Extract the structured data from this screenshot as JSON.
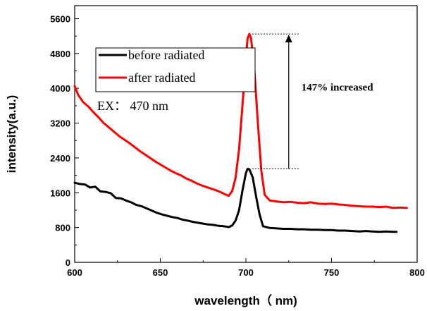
{
  "chart_data": {
    "type": "line",
    "title": "",
    "xlabel": "wavelength（ nm)",
    "ylabel": "intensity(a.u.)",
    "xlim": [
      600,
      800
    ],
    "ylim": [
      0,
      5900
    ],
    "x_ticks": [
      600,
      650,
      700,
      750,
      800
    ],
    "y_ticks": [
      0,
      800,
      1600,
      2400,
      3200,
      4000,
      4800,
      5600
    ],
    "grid": false,
    "legend_position": "top-left",
    "excitation_note": "EX： 470 nm",
    "annotation": {
      "text": "147% increased",
      "from_value": 2150,
      "to_value": 5250,
      "x": 725
    },
    "series": [
      {
        "name": "before radiated",
        "color": "#000000",
        "points": [
          [
            600,
            1830
          ],
          [
            603,
            1800
          ],
          [
            606,
            1790
          ],
          [
            609,
            1720
          ],
          [
            612,
            1740
          ],
          [
            615,
            1630
          ],
          [
            618,
            1620
          ],
          [
            621,
            1590
          ],
          [
            624,
            1480
          ],
          [
            627,
            1470
          ],
          [
            630,
            1420
          ],
          [
            633,
            1380
          ],
          [
            636,
            1320
          ],
          [
            639,
            1290
          ],
          [
            642,
            1240
          ],
          [
            645,
            1190
          ],
          [
            648,
            1140
          ],
          [
            651,
            1100
          ],
          [
            654,
            1070
          ],
          [
            657,
            1040
          ],
          [
            660,
            1020
          ],
          [
            663,
            980
          ],
          [
            666,
            960
          ],
          [
            669,
            930
          ],
          [
            672,
            910
          ],
          [
            675,
            890
          ],
          [
            678,
            870
          ],
          [
            681,
            860
          ],
          [
            684,
            840
          ],
          [
            687,
            830
          ],
          [
            690,
            810
          ],
          [
            692,
            850
          ],
          [
            694,
            960
          ],
          [
            696,
            1200
          ],
          [
            698,
            1650
          ],
          [
            700,
            2050
          ],
          [
            701,
            2150
          ],
          [
            702,
            2140
          ],
          [
            704,
            1950
          ],
          [
            706,
            1500
          ],
          [
            708,
            1100
          ],
          [
            710,
            830
          ],
          [
            714,
            790
          ],
          [
            718,
            780
          ],
          [
            722,
            770
          ],
          [
            726,
            770
          ],
          [
            730,
            760
          ],
          [
            734,
            760
          ],
          [
            738,
            750
          ],
          [
            742,
            750
          ],
          [
            746,
            740
          ],
          [
            750,
            740
          ],
          [
            754,
            730
          ],
          [
            758,
            730
          ],
          [
            762,
            720
          ],
          [
            766,
            710
          ],
          [
            770,
            720
          ],
          [
            774,
            710
          ],
          [
            778,
            700
          ],
          [
            782,
            710
          ],
          [
            786,
            700
          ],
          [
            788,
            700
          ]
        ]
      },
      {
        "name": "after radiated",
        "color": "#ff0000",
        "points": [
          [
            600,
            4050
          ],
          [
            602,
            3850
          ],
          [
            605,
            3680
          ],
          [
            608,
            3580
          ],
          [
            611,
            3450
          ],
          [
            614,
            3330
          ],
          [
            617,
            3200
          ],
          [
            620,
            3100
          ],
          [
            623,
            3000
          ],
          [
            626,
            2900
          ],
          [
            629,
            2820
          ],
          [
            632,
            2740
          ],
          [
            635,
            2650
          ],
          [
            638,
            2560
          ],
          [
            641,
            2480
          ],
          [
            644,
            2400
          ],
          [
            647,
            2320
          ],
          [
            650,
            2250
          ],
          [
            653,
            2180
          ],
          [
            656,
            2110
          ],
          [
            659,
            2050
          ],
          [
            662,
            2000
          ],
          [
            665,
            1930
          ],
          [
            668,
            1880
          ],
          [
            671,
            1820
          ],
          [
            674,
            1770
          ],
          [
            677,
            1730
          ],
          [
            680,
            1690
          ],
          [
            683,
            1650
          ],
          [
            686,
            1600
          ],
          [
            688,
            1560
          ],
          [
            690,
            1530
          ],
          [
            692,
            1640
          ],
          [
            694,
            1950
          ],
          [
            696,
            2600
          ],
          [
            698,
            3600
          ],
          [
            700,
            4700
          ],
          [
            701,
            5150
          ],
          [
            702,
            5250
          ],
          [
            703,
            5150
          ],
          [
            705,
            4400
          ],
          [
            707,
            3200
          ],
          [
            709,
            2100
          ],
          [
            711,
            1550
          ],
          [
            714,
            1420
          ],
          [
            718,
            1400
          ],
          [
            722,
            1380
          ],
          [
            726,
            1390
          ],
          [
            730,
            1370
          ],
          [
            734,
            1360
          ],
          [
            738,
            1380
          ],
          [
            742,
            1350
          ],
          [
            746,
            1340
          ],
          [
            750,
            1350
          ],
          [
            754,
            1330
          ],
          [
            758,
            1320
          ],
          [
            762,
            1300
          ],
          [
            766,
            1290
          ],
          [
            770,
            1280
          ],
          [
            774,
            1280
          ],
          [
            778,
            1270
          ],
          [
            782,
            1280
          ],
          [
            786,
            1250
          ],
          [
            790,
            1260
          ],
          [
            794,
            1250
          ]
        ]
      }
    ]
  }
}
